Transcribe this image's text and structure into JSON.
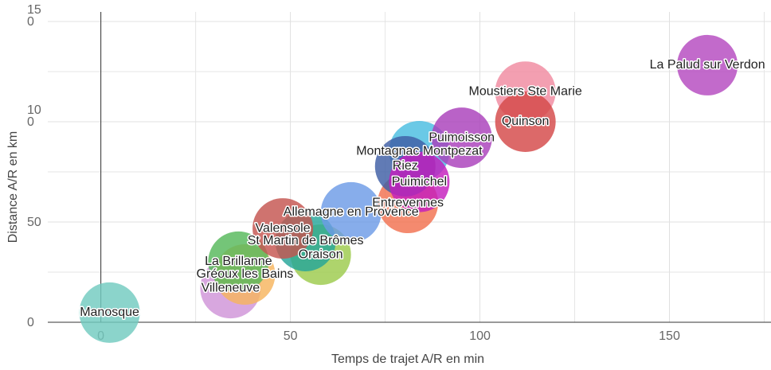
{
  "chart_data": {
    "type": "scatter",
    "x_label": "Temps de trajet A/R en min",
    "y_label": "Distance A/R en km",
    "categories": [
      "Manosque",
      "Villeneuve",
      "Gréoux les Bains",
      "La Brillanne",
      "Oraison",
      "St Martin de Brômes",
      "Valensole",
      "Allemagne en Provence",
      "Entrevennes",
      "Montagnac Montpezat",
      "Riez",
      "Puimichel",
      "Puimoisson",
      "Moustiers Ste Marie",
      "Quinson",
      "La Palud sur Verdon"
    ],
    "x": [
      2.3,
      34.2,
      38,
      36.3,
      58,
      54,
      48,
      66,
      81,
      84,
      80.3,
      84,
      95.2,
      112,
      112,
      160
    ],
    "values": [
      4.8,
      17,
      23.8,
      30.2,
      33.7,
      40.5,
      46.8,
      54.8,
      59.5,
      85.3,
      77.8,
      70,
      92,
      115,
      100,
      128.2
    ],
    "colors": [
      "#72cbc0",
      "#cf94d8",
      "#f7b45e",
      "#55b85a",
      "#9ccb4c",
      "#26a69a",
      "#c4544f",
      "#6d9be6",
      "#f2704f",
      "#49bde0",
      "#3e5ea5",
      "#c41dbd",
      "#a940bb",
      "#f08aa0",
      "#d44848",
      "#b449c0"
    ],
    "xlim": [
      -14,
      177
    ],
    "ylim": [
      0,
      150
    ],
    "xticks": [
      0,
      50,
      100,
      150
    ],
    "yticks": [
      0,
      50,
      100,
      150
    ],
    "x_minor_grid": [
      25,
      75,
      125,
      175
    ],
    "y_minor_grid": [
      25,
      75,
      125
    ],
    "grid": true
  }
}
